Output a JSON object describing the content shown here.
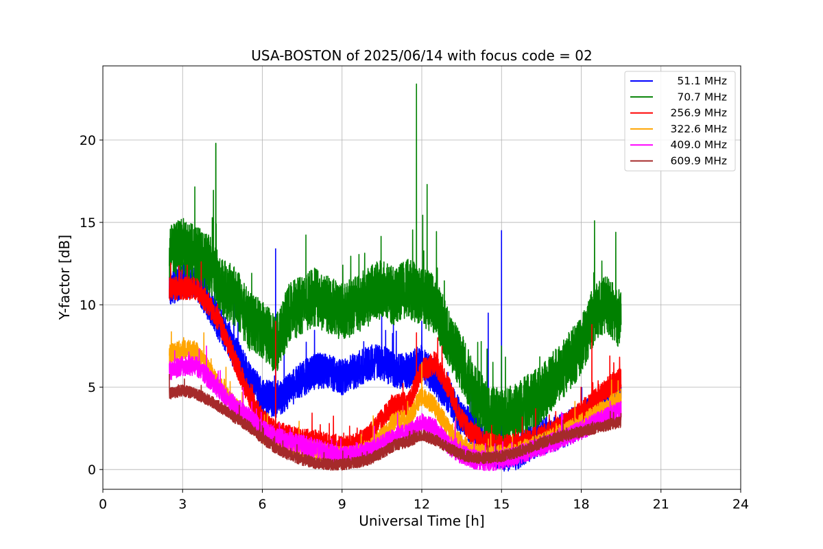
{
  "chart_data": {
    "type": "line",
    "title": "USA-BOSTON of 2025/06/14 with focus code = 02",
    "xlabel": "Universal Time [h]",
    "ylabel": "Y-factor [dB]",
    "xlim": [
      0,
      24
    ],
    "ylim": [
      -1.2,
      24.5
    ],
    "xticks": [
      0,
      3,
      6,
      9,
      12,
      15,
      18,
      21,
      24
    ],
    "yticks": [
      0,
      5,
      10,
      15,
      20
    ],
    "grid": true,
    "legend_position": "top-right",
    "series": [
      {
        "name": "51.1 MHz",
        "color": "#0000ff",
        "noise": 1.1,
        "x": [
          2.5,
          3.0,
          3.5,
          4.0,
          4.5,
          5.0,
          5.5,
          6.0,
          6.5,
          7.0,
          7.5,
          8.0,
          8.5,
          9.0,
          9.5,
          10.0,
          10.5,
          11.0,
          11.5,
          12.0,
          12.5,
          13.0,
          13.5,
          14.0,
          14.5,
          15.0,
          15.5,
          16.0,
          16.5,
          17.0,
          17.5,
          18.0,
          18.5,
          19.0,
          19.5
        ],
        "y": [
          11.0,
          11.5,
          11.5,
          10.0,
          8.5,
          7.0,
          5.5,
          4.5,
          4.2,
          4.8,
          5.5,
          6.0,
          6.0,
          5.6,
          6.0,
          6.5,
          6.5,
          6.0,
          6.0,
          6.5,
          5.5,
          4.5,
          3.0,
          2.5,
          1.5,
          1.0,
          1.0,
          1.5,
          2.0,
          2.2,
          2.5,
          3.0,
          3.5,
          4.0,
          4.5
        ],
        "spikes": [
          [
            4.2,
            12.0
          ],
          [
            6.5,
            13.4
          ],
          [
            14.5,
            9.5
          ],
          [
            15.0,
            14.5
          ],
          [
            12.0,
            9.0
          ]
        ]
      },
      {
        "name": "70.7 MHz",
        "color": "#008000",
        "noise": 1.8,
        "x": [
          2.5,
          3.0,
          3.5,
          4.0,
          4.5,
          5.0,
          5.5,
          6.0,
          6.5,
          7.0,
          7.5,
          8.0,
          8.5,
          9.0,
          9.5,
          10.0,
          10.5,
          11.0,
          11.5,
          12.0,
          12.5,
          13.0,
          13.5,
          14.0,
          14.5,
          15.0,
          15.5,
          16.0,
          16.5,
          17.0,
          17.5,
          18.0,
          18.5,
          19.0,
          19.5
        ],
        "y": [
          13.0,
          13.5,
          13.0,
          12.5,
          11.0,
          10.5,
          9.0,
          8.5,
          7.5,
          9.5,
          10.0,
          10.5,
          10.0,
          9.5,
          10.0,
          10.5,
          11.0,
          10.5,
          11.0,
          10.5,
          10.0,
          8.0,
          6.5,
          4.5,
          3.5,
          3.0,
          3.5,
          4.0,
          4.5,
          5.5,
          6.5,
          7.5,
          9.5,
          10.0,
          9.0
        ],
        "spikes": [
          [
            4.25,
            19.8
          ],
          [
            11.8,
            23.4
          ],
          [
            12.2,
            17.3
          ],
          [
            15.0,
            7.5
          ],
          [
            18.5,
            15.1
          ],
          [
            19.3,
            14.4
          ]
        ]
      },
      {
        "name": "256.9 MHz",
        "color": "#ff0000",
        "noise": 0.7,
        "x": [
          2.5,
          3.0,
          3.5,
          4.0,
          4.5,
          5.0,
          5.5,
          6.0,
          6.5,
          7.0,
          7.5,
          8.0,
          8.5,
          9.0,
          9.5,
          10.0,
          10.5,
          11.0,
          11.5,
          12.0,
          12.5,
          13.0,
          13.5,
          14.0,
          14.5,
          15.0,
          15.5,
          16.0,
          16.5,
          17.0,
          17.5,
          18.0,
          18.5,
          19.0,
          19.5
        ],
        "y": [
          11.0,
          11.0,
          11.0,
          10.0,
          8.5,
          6.5,
          4.5,
          3.0,
          2.3,
          2.0,
          1.8,
          1.7,
          1.5,
          1.3,
          1.5,
          2.0,
          3.0,
          4.0,
          4.0,
          6.0,
          6.5,
          5.0,
          3.0,
          2.0,
          1.6,
          1.4,
          1.5,
          1.8,
          2.0,
          2.4,
          2.8,
          3.5,
          4.2,
          5.0,
          5.5
        ],
        "spikes": [
          [
            6.5,
            9.0
          ],
          [
            11.8,
            8.3
          ],
          [
            12.6,
            8.0
          ],
          [
            18.4,
            8.8
          ]
        ]
      },
      {
        "name": "322.6 MHz",
        "color": "#ffa500",
        "noise": 0.6,
        "x": [
          2.5,
          3.0,
          3.5,
          4.0,
          4.5,
          5.0,
          5.5,
          6.0,
          6.5,
          7.0,
          7.5,
          8.0,
          8.5,
          9.0,
          9.5,
          10.0,
          10.5,
          11.0,
          11.5,
          12.0,
          12.5,
          13.0,
          13.5,
          14.0,
          14.5,
          15.0,
          15.5,
          16.0,
          16.5,
          17.0,
          17.5,
          18.0,
          18.5,
          19.0,
          19.5
        ],
        "y": [
          7.0,
          7.3,
          7.2,
          6.0,
          4.8,
          3.8,
          3.0,
          2.2,
          1.8,
          1.5,
          1.3,
          1.1,
          0.9,
          0.8,
          0.9,
          1.2,
          2.0,
          3.0,
          3.0,
          4.5,
          3.8,
          2.5,
          1.5,
          1.0,
          0.9,
          0.9,
          1.0,
          1.3,
          1.6,
          2.0,
          2.4,
          2.8,
          3.3,
          3.8,
          4.3
        ],
        "spikes": [
          [
            3.8,
            8.3
          ],
          [
            12.0,
            6.5
          ]
        ]
      },
      {
        "name": "409.0 MHz",
        "color": "#ff00ff",
        "noise": 0.6,
        "x": [
          2.5,
          3.0,
          3.5,
          4.0,
          4.5,
          5.0,
          5.5,
          6.0,
          6.5,
          7.0,
          7.5,
          8.0,
          8.5,
          9.0,
          9.5,
          10.0,
          10.5,
          11.0,
          11.5,
          12.0,
          12.5,
          13.0,
          13.5,
          14.0,
          14.5,
          15.0,
          15.5,
          16.0,
          16.5,
          17.0,
          17.5,
          18.0,
          18.5,
          19.0,
          19.5
        ],
        "y": [
          6.0,
          6.3,
          6.3,
          5.5,
          4.6,
          3.8,
          3.2,
          2.4,
          2.0,
          1.7,
          1.5,
          1.3,
          1.0,
          0.8,
          0.9,
          1.1,
          1.5,
          2.0,
          2.2,
          2.8,
          2.5,
          1.5,
          0.9,
          0.6,
          0.5,
          0.6,
          0.8,
          1.1,
          1.4,
          1.7,
          2.0,
          2.4,
          2.8,
          3.2,
          3.6
        ],
        "spikes": [
          [
            3.9,
            7.5
          ]
        ]
      },
      {
        "name": "609.9 MHz",
        "color": "#a52a2a",
        "noise": 0.35,
        "x": [
          2.5,
          3.0,
          3.5,
          4.0,
          4.5,
          5.0,
          5.5,
          6.0,
          6.5,
          7.0,
          7.5,
          8.0,
          8.5,
          9.0,
          9.5,
          10.0,
          10.5,
          11.0,
          11.5,
          12.0,
          12.5,
          13.0,
          13.5,
          14.0,
          14.5,
          15.0,
          15.5,
          16.0,
          16.5,
          17.0,
          17.5,
          18.0,
          18.5,
          19.0,
          19.5
        ],
        "y": [
          4.6,
          4.8,
          4.6,
          4.2,
          3.7,
          3.1,
          2.6,
          1.9,
          1.3,
          0.9,
          0.6,
          0.4,
          0.3,
          0.3,
          0.4,
          0.6,
          1.0,
          1.5,
          1.7,
          2.1,
          1.8,
          1.3,
          0.9,
          0.7,
          0.7,
          0.8,
          1.0,
          1.3,
          1.6,
          1.9,
          2.1,
          2.3,
          2.5,
          2.7,
          2.9
        ],
        "spikes": [
          [
            2.5,
            5.8
          ]
        ]
      }
    ]
  }
}
